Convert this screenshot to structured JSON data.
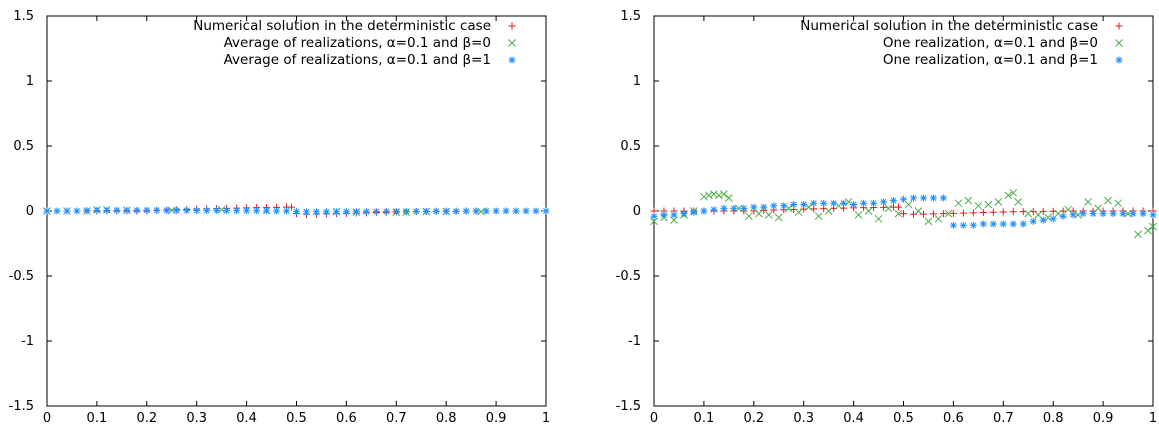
{
  "chart_data": [
    {
      "type": "scatter",
      "title": "",
      "xlabel": "",
      "ylabel": "",
      "xlim": [
        0,
        1
      ],
      "ylim": [
        -1.5,
        1.5
      ],
      "x_ticks": [
        "0",
        "0.1",
        "0.2",
        "0.3",
        "0.4",
        "0.5",
        "0.6",
        "0.7",
        "0.8",
        "0.9",
        "1"
      ],
      "y_ticks": [
        "1.5",
        "1",
        "0.5",
        "0",
        "-0.5",
        "-1",
        "-1.5"
      ],
      "grid": false,
      "legend_position": "top-right",
      "series": [
        {
          "name": "Numerical solution in the deterministic case",
          "marker": "plus",
          "color": "#e41a1c",
          "x": [
            0.0,
            0.02,
            0.04,
            0.06,
            0.08,
            0.1,
            0.12,
            0.14,
            0.16,
            0.18,
            0.2,
            0.22,
            0.24,
            0.26,
            0.28,
            0.3,
            0.32,
            0.34,
            0.36,
            0.38,
            0.4,
            0.42,
            0.44,
            0.46,
            0.48,
            0.49,
            0.5,
            0.52,
            0.54,
            0.56,
            0.58,
            0.6,
            0.62,
            0.64,
            0.66,
            0.68,
            0.7,
            0.72,
            0.74,
            0.76,
            0.78,
            0.8,
            0.82,
            0.84,
            0.86,
            0.88,
            0.9,
            0.92,
            0.94,
            0.96,
            0.98,
            1.0
          ],
          "y": [
            0.0,
            0.0,
            0.0,
            0.0,
            0.0,
            0.0,
            0.0,
            0.0,
            0.0,
            0.0,
            0.0,
            0.005,
            0.008,
            0.01,
            0.012,
            0.014,
            0.016,
            0.018,
            0.02,
            0.022,
            0.024,
            0.026,
            0.027,
            0.028,
            0.03,
            0.03,
            -0.02,
            -0.025,
            -0.024,
            -0.022,
            -0.02,
            -0.018,
            -0.016,
            -0.014,
            -0.012,
            -0.01,
            -0.008,
            -0.006,
            -0.005,
            -0.004,
            -0.003,
            -0.002,
            -0.001,
            0.0,
            0.0,
            0.0,
            0.0,
            0.0,
            0.0,
            0.0,
            0.0,
            0.0
          ]
        },
        {
          "name": "Average of realizations, α=0.1 and β=0",
          "marker": "x",
          "color": "#4daf4a",
          "x": [
            0.0,
            0.04,
            0.08,
            0.1,
            0.12,
            0.16,
            0.25,
            0.35,
            0.44,
            0.58,
            0.62,
            0.7,
            0.72,
            0.76,
            0.8,
            0.87
          ],
          "y": [
            0.0,
            0.0,
            0.0,
            0.01,
            0.01,
            0.005,
            0.005,
            0.01,
            0.005,
            -0.005,
            -0.01,
            -0.01,
            -0.01,
            -0.005,
            -0.005,
            -0.005
          ]
        },
        {
          "name": "Average of realizations, α=0.1 and β=1",
          "marker": "star",
          "color": "#1e90ff",
          "x": [
            0.0,
            0.02,
            0.04,
            0.06,
            0.08,
            0.1,
            0.12,
            0.14,
            0.16,
            0.18,
            0.2,
            0.22,
            0.24,
            0.26,
            0.28,
            0.3,
            0.32,
            0.34,
            0.36,
            0.38,
            0.4,
            0.42,
            0.44,
            0.46,
            0.48,
            0.5,
            0.52,
            0.54,
            0.56,
            0.58,
            0.6,
            0.62,
            0.64,
            0.66,
            0.68,
            0.7,
            0.72,
            0.74,
            0.76,
            0.78,
            0.8,
            0.82,
            0.84,
            0.86,
            0.88,
            0.9,
            0.92,
            0.94,
            0.96,
            0.98,
            1.0
          ],
          "y": [
            0.0,
            0.0,
            0.0,
            0.0,
            0.003,
            0.005,
            0.005,
            0.006,
            0.006,
            0.006,
            0.006,
            0.006,
            0.005,
            0.005,
            0.005,
            0.004,
            0.004,
            0.004,
            0.003,
            0.003,
            0.002,
            0.002,
            0.001,
            0.0,
            0.0,
            -0.005,
            -0.006,
            -0.006,
            -0.006,
            -0.006,
            -0.005,
            -0.005,
            -0.005,
            -0.005,
            -0.004,
            -0.004,
            -0.004,
            -0.003,
            -0.003,
            -0.002,
            -0.002,
            -0.002,
            -0.001,
            -0.001,
            0.0,
            0.0,
            0.0,
            0.0,
            0.0,
            0.0,
            0.0
          ]
        }
      ]
    },
    {
      "type": "scatter",
      "title": "",
      "xlabel": "",
      "ylabel": "",
      "xlim": [
        0,
        1
      ],
      "ylim": [
        -1.5,
        1.5
      ],
      "x_ticks": [
        "0",
        "0.1",
        "0.2",
        "0.3",
        "0.4",
        "0.5",
        "0.6",
        "0.7",
        "0.8",
        "0.9",
        "1"
      ],
      "y_ticks": [
        "1.5",
        "1",
        "0.5",
        "0",
        "-0.5",
        "-1",
        "-1.5"
      ],
      "grid": false,
      "legend_position": "top-right",
      "series": [
        {
          "name": "Numerical solution in the deterministic case",
          "marker": "plus",
          "color": "#e41a1c",
          "x": [
            0.0,
            0.02,
            0.04,
            0.06,
            0.08,
            0.1,
            0.12,
            0.14,
            0.16,
            0.18,
            0.2,
            0.22,
            0.24,
            0.26,
            0.28,
            0.3,
            0.32,
            0.34,
            0.36,
            0.38,
            0.4,
            0.42,
            0.44,
            0.46,
            0.48,
            0.49,
            0.5,
            0.52,
            0.54,
            0.56,
            0.58,
            0.6,
            0.62,
            0.64,
            0.66,
            0.68,
            0.7,
            0.72,
            0.74,
            0.76,
            0.78,
            0.8,
            0.82,
            0.84,
            0.86,
            0.88,
            0.9,
            0.92,
            0.94,
            0.96,
            0.98,
            1.0
          ],
          "y": [
            0.0,
            0.0,
            0.0,
            0.0,
            0.0,
            0.0,
            0.0,
            0.0,
            0.0,
            0.0,
            0.0,
            0.005,
            0.008,
            0.01,
            0.012,
            0.014,
            0.016,
            0.018,
            0.02,
            0.022,
            0.024,
            0.026,
            0.027,
            0.028,
            0.03,
            0.03,
            -0.02,
            -0.025,
            -0.024,
            -0.022,
            -0.02,
            -0.018,
            -0.016,
            -0.014,
            -0.012,
            -0.01,
            -0.008,
            -0.006,
            -0.005,
            -0.004,
            -0.003,
            -0.002,
            -0.001,
            0.0,
            0.0,
            0.0,
            0.0,
            0.0,
            0.0,
            0.0,
            0.0,
            0.0
          ]
        },
        {
          "name": "One realization, α=0.1 and β=0",
          "marker": "x",
          "color": "#4daf4a",
          "x": [
            0.0,
            0.02,
            0.04,
            0.06,
            0.08,
            0.1,
            0.11,
            0.12,
            0.13,
            0.14,
            0.15,
            0.17,
            0.19,
            0.21,
            0.23,
            0.25,
            0.27,
            0.29,
            0.31,
            0.33,
            0.35,
            0.37,
            0.39,
            0.41,
            0.43,
            0.45,
            0.47,
            0.49,
            0.51,
            0.53,
            0.55,
            0.57,
            0.59,
            0.61,
            0.63,
            0.65,
            0.67,
            0.69,
            0.71,
            0.72,
            0.73,
            0.75,
            0.77,
            0.79,
            0.81,
            0.83,
            0.85,
            0.87,
            0.89,
            0.91,
            0.93,
            0.95,
            0.97,
            0.99,
            1.0
          ],
          "y": [
            -0.08,
            -0.05,
            -0.07,
            -0.03,
            0.0,
            0.11,
            0.12,
            0.13,
            0.12,
            0.13,
            0.1,
            0.02,
            -0.04,
            -0.02,
            -0.03,
            -0.05,
            0.02,
            -0.01,
            0.03,
            -0.04,
            0.0,
            0.04,
            0.07,
            -0.03,
            0.0,
            -0.06,
            0.02,
            -0.02,
            0.05,
            0.0,
            -0.08,
            -0.06,
            -0.02,
            0.06,
            0.08,
            0.04,
            0.05,
            0.07,
            0.12,
            0.14,
            0.07,
            -0.02,
            -0.03,
            -0.05,
            -0.02,
            0.01,
            -0.03,
            0.07,
            0.02,
            0.08,
            0.06,
            -0.02,
            -0.18,
            -0.15,
            -0.12
          ]
        },
        {
          "name": "One realization, α=0.1 and β=1",
          "marker": "star",
          "color": "#1e90ff",
          "x": [
            0.0,
            0.02,
            0.04,
            0.06,
            0.08,
            0.1,
            0.12,
            0.14,
            0.16,
            0.18,
            0.2,
            0.22,
            0.24,
            0.26,
            0.28,
            0.3,
            0.32,
            0.34,
            0.36,
            0.38,
            0.4,
            0.42,
            0.44,
            0.46,
            0.48,
            0.5,
            0.52,
            0.54,
            0.56,
            0.58,
            0.6,
            0.62,
            0.64,
            0.66,
            0.68,
            0.7,
            0.72,
            0.74,
            0.76,
            0.78,
            0.8,
            0.82,
            0.84,
            0.86,
            0.88,
            0.9,
            0.92,
            0.94,
            0.96,
            0.98,
            1.0
          ],
          "y": [
            -0.04,
            -0.03,
            -0.03,
            -0.02,
            -0.01,
            0.0,
            0.01,
            0.02,
            0.02,
            0.02,
            0.03,
            0.03,
            0.04,
            0.04,
            0.05,
            0.05,
            0.06,
            0.06,
            0.06,
            0.06,
            0.05,
            0.06,
            0.06,
            0.07,
            0.08,
            0.09,
            0.1,
            0.1,
            0.1,
            0.1,
            -0.11,
            -0.11,
            -0.11,
            -0.1,
            -0.1,
            -0.1,
            -0.1,
            -0.1,
            -0.08,
            -0.07,
            -0.06,
            -0.04,
            -0.03,
            -0.02,
            -0.02,
            -0.02,
            -0.02,
            -0.02,
            -0.02,
            -0.02,
            -0.03
          ]
        }
      ]
    }
  ]
}
